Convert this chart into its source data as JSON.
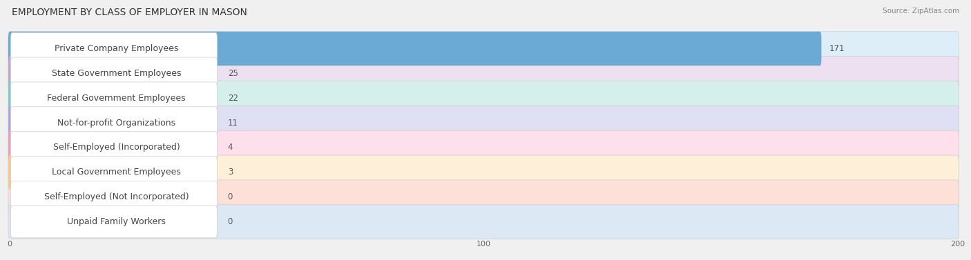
{
  "title": "EMPLOYMENT BY CLASS OF EMPLOYER IN MASON",
  "source": "Source: ZipAtlas.com",
  "categories": [
    "Private Company Employees",
    "State Government Employees",
    "Federal Government Employees",
    "Not-for-profit Organizations",
    "Self-Employed (Incorporated)",
    "Local Government Employees",
    "Self-Employed (Not Incorporated)",
    "Unpaid Family Workers"
  ],
  "values": [
    171,
    25,
    22,
    11,
    4,
    3,
    0,
    0
  ],
  "bar_colors": [
    "#6aaad4",
    "#c3a8d1",
    "#7ecfca",
    "#aaaae0",
    "#f0a0b8",
    "#f8c890",
    "#f0b0a0",
    "#a8c0e0"
  ],
  "row_bg_colors": [
    "#ddeef8",
    "#ede0f0",
    "#d5efed",
    "#e0e0f5",
    "#fde0ec",
    "#fef0d8",
    "#fde0d8",
    "#dde8f5"
  ],
  "xlim": [
    0,
    200
  ],
  "xticks": [
    0,
    100,
    200
  ],
  "page_bg": "#f0f0f0",
  "row_outer_bg": "#ebebeb",
  "title_fontsize": 10,
  "label_fontsize": 9,
  "value_fontsize": 8.5
}
